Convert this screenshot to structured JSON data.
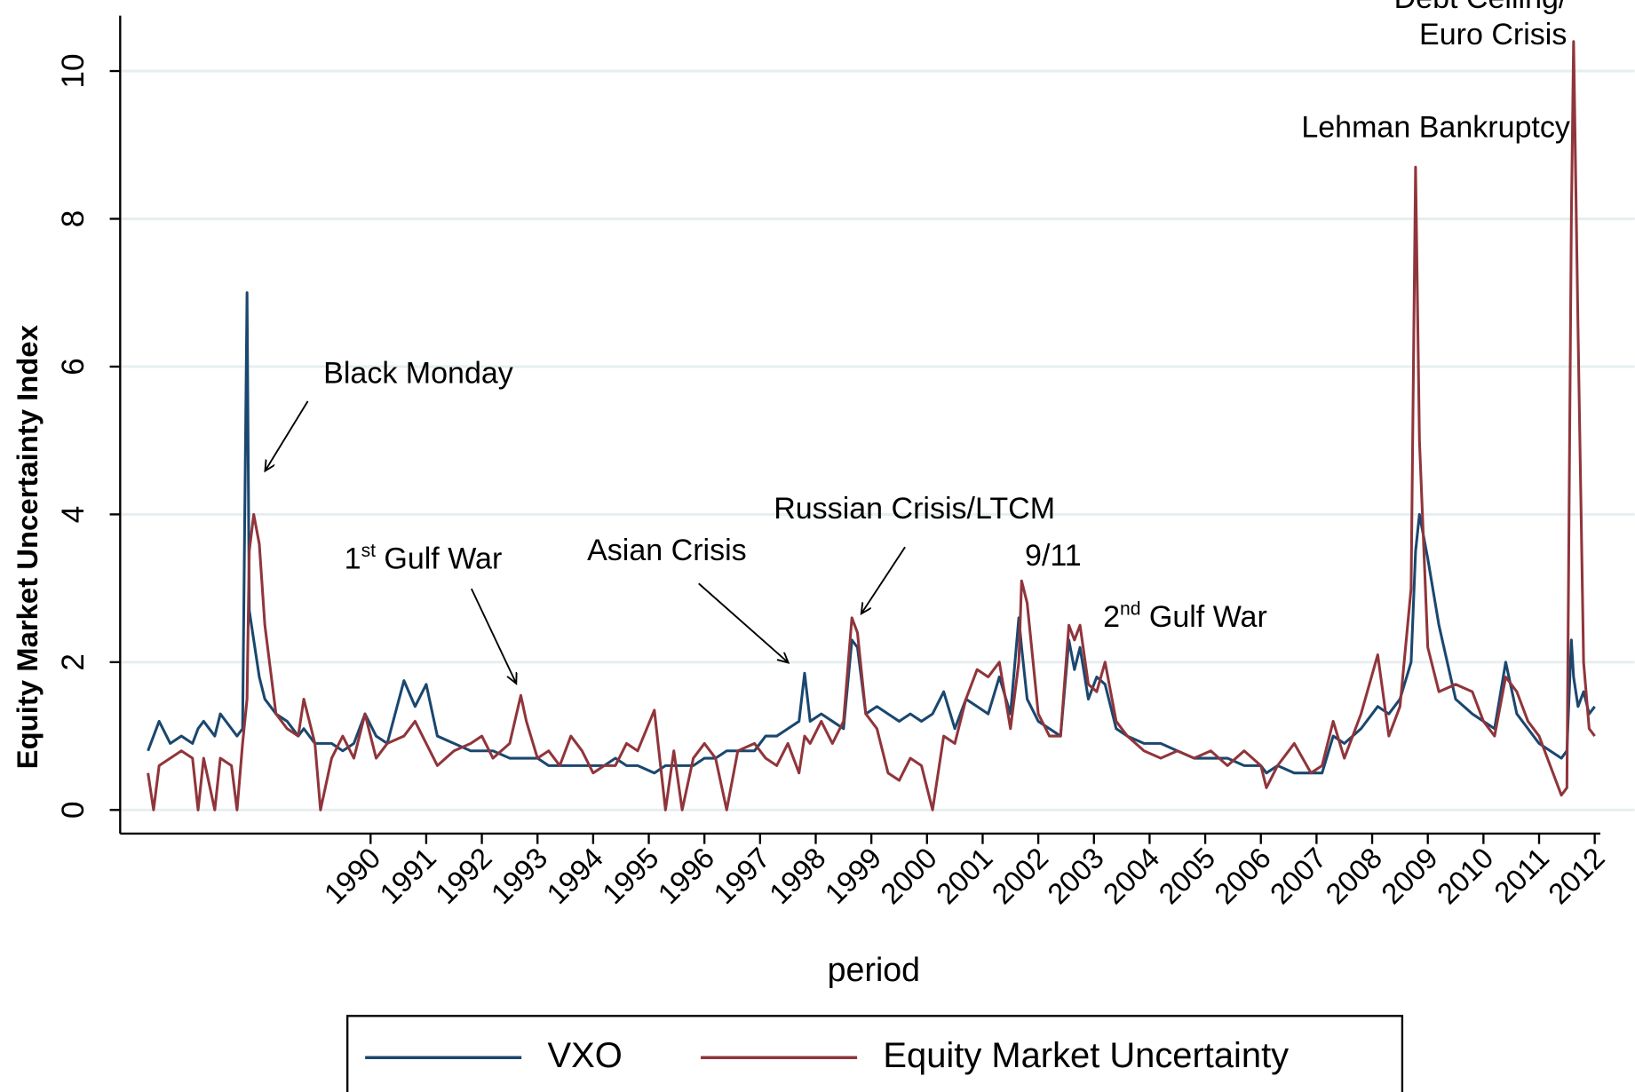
{
  "chart_data": {
    "type": "line",
    "x_label": "period",
    "y_label": "Equity Market Uncertainty Index",
    "xlim": [
      1985.5,
      2012.1
    ],
    "xticks": [
      1990,
      1991,
      1992,
      1993,
      1994,
      1995,
      1996,
      1997,
      1998,
      1999,
      2000,
      2001,
      2002,
      2003,
      2004,
      2005,
      2006,
      2007,
      2008,
      2009,
      2010,
      2011,
      2012
    ],
    "ylim": [
      -0.32,
      10.75
    ],
    "yticks": [
      0,
      2,
      4,
      6,
      8,
      10
    ],
    "grid": true,
    "legend": "bottom",
    "x": [
      1986.0,
      1986.1,
      1986.2,
      1986.4,
      1986.6,
      1986.8,
      1986.9,
      1987.0,
      1987.2,
      1987.3,
      1987.5,
      1987.6,
      1987.7,
      1987.78,
      1987.82,
      1987.9,
      1988.0,
      1988.1,
      1988.3,
      1988.5,
      1988.7,
      1988.8,
      1989.0,
      1989.1,
      1989.3,
      1989.5,
      1989.7,
      1989.9,
      1990.1,
      1990.3,
      1990.6,
      1990.8,
      1991.0,
      1991.2,
      1991.5,
      1991.8,
      1992.0,
      1992.2,
      1992.5,
      1992.7,
      1992.8,
      1993.0,
      1993.2,
      1993.4,
      1993.6,
      1993.8,
      1994.0,
      1994.2,
      1994.4,
      1994.6,
      1994.8,
      1995.1,
      1995.3,
      1995.45,
      1995.6,
      1995.8,
      1996.0,
      1996.2,
      1996.4,
      1996.6,
      1996.9,
      1997.1,
      1997.3,
      1997.5,
      1997.7,
      1997.8,
      1997.9,
      1998.1,
      1998.3,
      1998.5,
      1998.65,
      1998.75,
      1998.9,
      1999.1,
      1999.3,
      1999.5,
      1999.7,
      1999.9,
      2000.1,
      2000.3,
      2000.5,
      2000.7,
      2000.9,
      2001.1,
      2001.3,
      2001.5,
      2001.65,
      2001.7,
      2001.8,
      2002.0,
      2002.2,
      2002.4,
      2002.55,
      2002.65,
      2002.75,
      2002.9,
      2003.05,
      2003.2,
      2003.4,
      2003.6,
      2003.9,
      2004.2,
      2004.5,
      2004.8,
      2005.1,
      2005.4,
      2005.7,
      2006.0,
      2006.1,
      2006.3,
      2006.6,
      2006.9,
      2007.1,
      2007.3,
      2007.5,
      2007.8,
      2008.1,
      2008.3,
      2008.5,
      2008.7,
      2008.78,
      2008.85,
      2009.0,
      2009.2,
      2009.5,
      2009.8,
      2010.0,
      2010.2,
      2010.4,
      2010.6,
      2010.8,
      2011.0,
      2011.2,
      2011.4,
      2011.5,
      2011.58,
      2011.62,
      2011.7,
      2011.8,
      2011.9,
      2012.0
    ],
    "series": [
      {
        "name": "VXO",
        "color": "#1a476f",
        "values": [
          0.8,
          1.0,
          1.2,
          0.9,
          1.0,
          0.9,
          1.1,
          1.2,
          1.0,
          1.3,
          1.1,
          1.0,
          1.1,
          7.0,
          2.7,
          2.3,
          1.8,
          1.5,
          1.3,
          1.2,
          1.0,
          1.1,
          0.9,
          0.9,
          0.9,
          0.8,
          0.9,
          1.3,
          1.0,
          0.9,
          1.75,
          1.4,
          1.7,
          1.0,
          0.9,
          0.8,
          0.8,
          0.8,
          0.7,
          0.7,
          0.7,
          0.7,
          0.6,
          0.6,
          0.6,
          0.6,
          0.6,
          0.6,
          0.7,
          0.6,
          0.6,
          0.5,
          0.6,
          0.6,
          0.6,
          0.6,
          0.7,
          0.7,
          0.8,
          0.8,
          0.8,
          1.0,
          1.0,
          1.1,
          1.2,
          1.85,
          1.2,
          1.3,
          1.2,
          1.1,
          2.3,
          2.2,
          1.3,
          1.4,
          1.3,
          1.2,
          1.3,
          1.2,
          1.3,
          1.6,
          1.1,
          1.5,
          1.4,
          1.3,
          1.8,
          1.3,
          2.6,
          2.2,
          1.5,
          1.2,
          1.1,
          1.0,
          2.3,
          1.9,
          2.2,
          1.5,
          1.8,
          1.7,
          1.1,
          1.0,
          0.9,
          0.9,
          0.8,
          0.7,
          0.7,
          0.7,
          0.6,
          0.6,
          0.5,
          0.6,
          0.5,
          0.5,
          0.5,
          1.0,
          0.9,
          1.1,
          1.4,
          1.3,
          1.5,
          2.0,
          3.5,
          4.0,
          3.4,
          2.5,
          1.5,
          1.3,
          1.2,
          1.1,
          2.0,
          1.3,
          1.1,
          0.9,
          0.8,
          0.7,
          0.8,
          2.3,
          1.8,
          1.4,
          1.6,
          1.3,
          1.4
        ]
      },
      {
        "name": "Equity Market Uncertainty",
        "color": "#90353b",
        "values": [
          0.5,
          0.0,
          0.6,
          0.7,
          0.8,
          0.7,
          0.0,
          0.7,
          0.0,
          0.7,
          0.6,
          0.0,
          0.9,
          1.5,
          3.5,
          4.0,
          3.6,
          2.5,
          1.3,
          1.1,
          1.0,
          1.5,
          0.9,
          0.0,
          0.7,
          1.0,
          0.7,
          1.3,
          0.7,
          0.9,
          1.0,
          1.2,
          0.9,
          0.6,
          0.8,
          0.9,
          1.0,
          0.7,
          0.9,
          1.55,
          1.2,
          0.7,
          0.8,
          0.6,
          1.0,
          0.8,
          0.5,
          0.6,
          0.6,
          0.9,
          0.8,
          1.35,
          0.0,
          0.8,
          0.0,
          0.7,
          0.9,
          0.7,
          0.0,
          0.8,
          0.9,
          0.7,
          0.6,
          0.9,
          0.5,
          1.0,
          0.9,
          1.2,
          0.9,
          1.2,
          2.6,
          2.4,
          1.3,
          1.1,
          0.5,
          0.4,
          0.7,
          0.6,
          0.0,
          1.0,
          0.9,
          1.5,
          1.9,
          1.8,
          2.0,
          1.1,
          2.0,
          3.1,
          2.8,
          1.3,
          1.0,
          1.0,
          2.5,
          2.3,
          2.5,
          1.7,
          1.6,
          2.0,
          1.2,
          1.0,
          0.8,
          0.7,
          0.8,
          0.7,
          0.8,
          0.6,
          0.8,
          0.6,
          0.3,
          0.6,
          0.9,
          0.5,
          0.6,
          1.2,
          0.7,
          1.3,
          2.1,
          1.0,
          1.4,
          3.0,
          8.7,
          5.0,
          2.2,
          1.6,
          1.7,
          1.6,
          1.2,
          1.0,
          1.8,
          1.6,
          1.2,
          1.0,
          0.6,
          0.2,
          0.3,
          8.0,
          10.4,
          6.5,
          2.0,
          1.1,
          1.0
        ]
      }
    ],
    "annotations": [
      {
        "text": "Black Monday"
      },
      {
        "parts": [
          "1",
          "st",
          "Gulf War"
        ]
      },
      {
        "text": "Asian Crisis"
      },
      {
        "text": "Russian Crisis/LTCM"
      },
      {
        "text": "9/11"
      },
      {
        "parts": [
          "2",
          "nd",
          "Gulf War"
        ]
      },
      {
        "text": "Lehman Bankruptcy"
      },
      {
        "lines": [
          "Debt Ceiling/",
          "Euro Crisis"
        ]
      }
    ]
  }
}
